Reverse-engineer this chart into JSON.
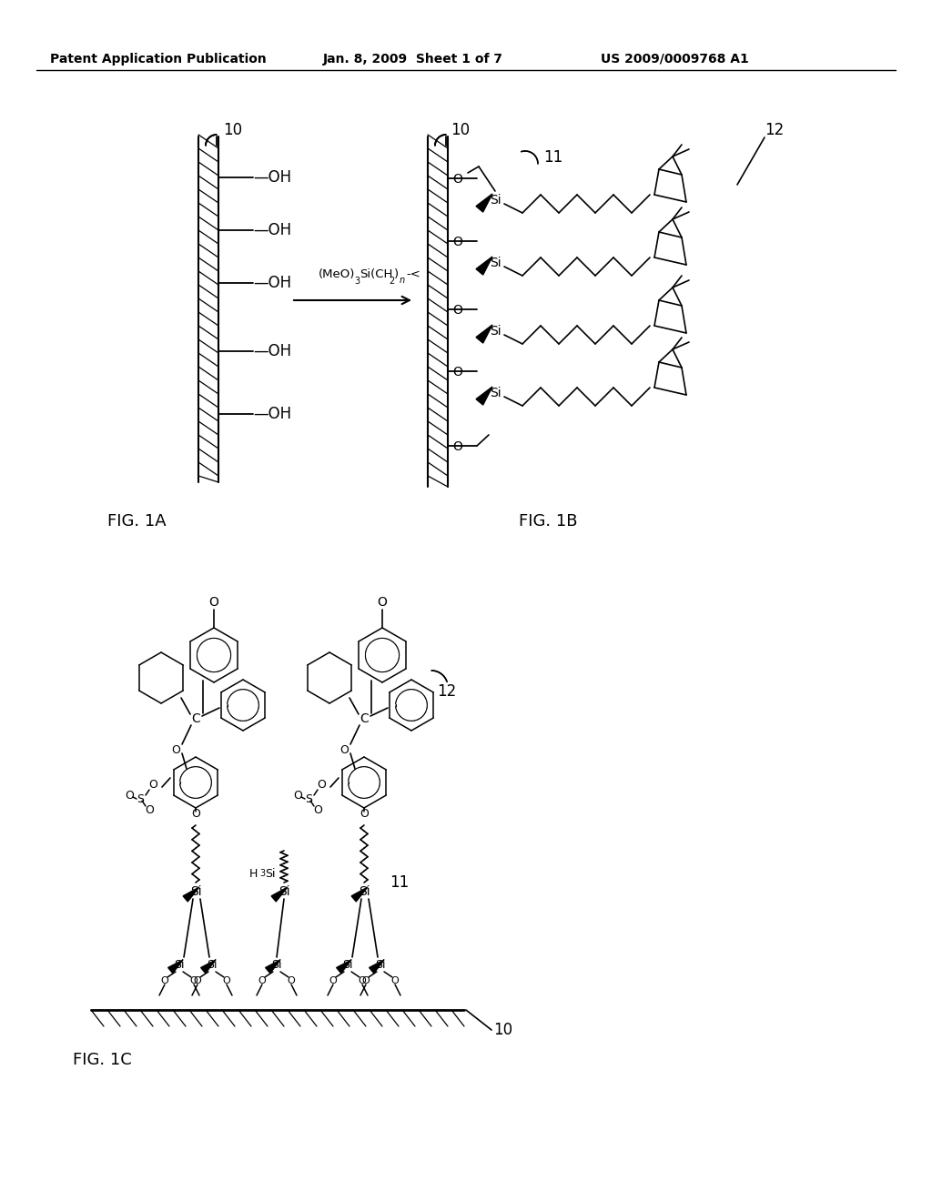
{
  "bg_color": "#ffffff",
  "header_left": "Patent Application Publication",
  "header_center": "Jan. 8, 2009  Sheet 1 of 7",
  "header_right": "US 2009/0009768 A1",
  "fig1a_label": "FIG. 1A",
  "fig1b_label": "FIG. 1B",
  "fig1c_label": "FIG. 1C",
  "label_10": "10",
  "label_11": "11",
  "label_12": "12",
  "reaction_text": "(MeO)",
  "reaction_sub3": "3",
  "reaction_text2": "Si(CH",
  "reaction_sub2": "2",
  "reaction_textn": ")",
  "reaction_subn": "n",
  "reaction_end": "-<",
  "h3si_text": "H",
  "h3si_sub": "3",
  "h3si_si": "Si"
}
